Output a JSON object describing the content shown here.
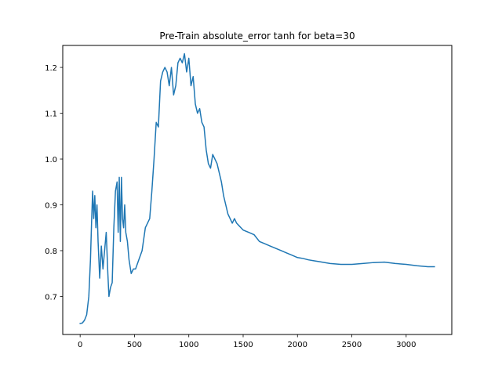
{
  "chart_data": {
    "type": "line",
    "title": "Pre-Train absolute_error tanh for beta=30",
    "xlabel": "",
    "ylabel": "",
    "xlim": [
      -160,
      3420
    ],
    "ylim": [
      0.617,
      1.248
    ],
    "xticks": [
      0,
      500,
      1000,
      1500,
      2000,
      2500,
      3000
    ],
    "xtick_labels": [
      "0",
      "500",
      "1000",
      "1500",
      "2000",
      "2500",
      "3000"
    ],
    "yticks": [
      0.7,
      0.8,
      0.9,
      1.0,
      1.1,
      1.2
    ],
    "ytick_labels": [
      "0.7",
      "0.8",
      "0.9",
      "1.0",
      "1.1",
      "1.2"
    ],
    "grid": false,
    "legend": "none",
    "series": [
      {
        "color": "#1f77b4",
        "x": [
          0,
          20,
          40,
          60,
          80,
          95,
          105,
          115,
          125,
          135,
          145,
          155,
          165,
          180,
          195,
          210,
          225,
          240,
          255,
          265,
          280,
          295,
          310,
          325,
          340,
          350,
          360,
          370,
          380,
          390,
          400,
          410,
          420,
          435,
          450,
          470,
          490,
          510,
          540,
          570,
          600,
          620,
          640,
          660,
          680,
          700,
          720,
          740,
          760,
          780,
          800,
          820,
          840,
          860,
          880,
          900,
          920,
          940,
          960,
          980,
          1000,
          1020,
          1040,
          1060,
          1080,
          1100,
          1120,
          1140,
          1160,
          1180,
          1200,
          1220,
          1240,
          1260,
          1280,
          1300,
          1320,
          1340,
          1360,
          1380,
          1400,
          1420,
          1440,
          1460,
          1480,
          1500,
          1550,
          1600,
          1650,
          1700,
          1750,
          1800,
          1850,
          1900,
          1950,
          2000,
          2050,
          2100,
          2150,
          2200,
          2300,
          2400,
          2500,
          2600,
          2700,
          2800,
          2900,
          3000,
          3100,
          3200,
          3260
        ],
        "y": [
          0.641,
          0.642,
          0.648,
          0.66,
          0.7,
          0.78,
          0.86,
          0.93,
          0.87,
          0.92,
          0.85,
          0.9,
          0.82,
          0.74,
          0.81,
          0.76,
          0.8,
          0.84,
          0.75,
          0.7,
          0.72,
          0.73,
          0.85,
          0.93,
          0.95,
          0.84,
          0.96,
          0.82,
          0.96,
          0.87,
          0.85,
          0.9,
          0.84,
          0.82,
          0.78,
          0.75,
          0.76,
          0.76,
          0.78,
          0.8,
          0.85,
          0.86,
          0.87,
          0.93,
          1.0,
          1.08,
          1.07,
          1.17,
          1.19,
          1.2,
          1.19,
          1.16,
          1.2,
          1.14,
          1.16,
          1.21,
          1.22,
          1.21,
          1.23,
          1.19,
          1.22,
          1.16,
          1.18,
          1.12,
          1.1,
          1.11,
          1.08,
          1.07,
          1.02,
          0.99,
          0.98,
          1.01,
          1.0,
          0.99,
          0.97,
          0.95,
          0.92,
          0.9,
          0.88,
          0.87,
          0.86,
          0.87,
          0.86,
          0.855,
          0.85,
          0.845,
          0.84,
          0.835,
          0.82,
          0.815,
          0.81,
          0.805,
          0.8,
          0.795,
          0.79,
          0.785,
          0.783,
          0.78,
          0.778,
          0.776,
          0.772,
          0.77,
          0.77,
          0.772,
          0.774,
          0.775,
          0.772,
          0.77,
          0.767,
          0.765,
          0.765
        ]
      }
    ]
  }
}
